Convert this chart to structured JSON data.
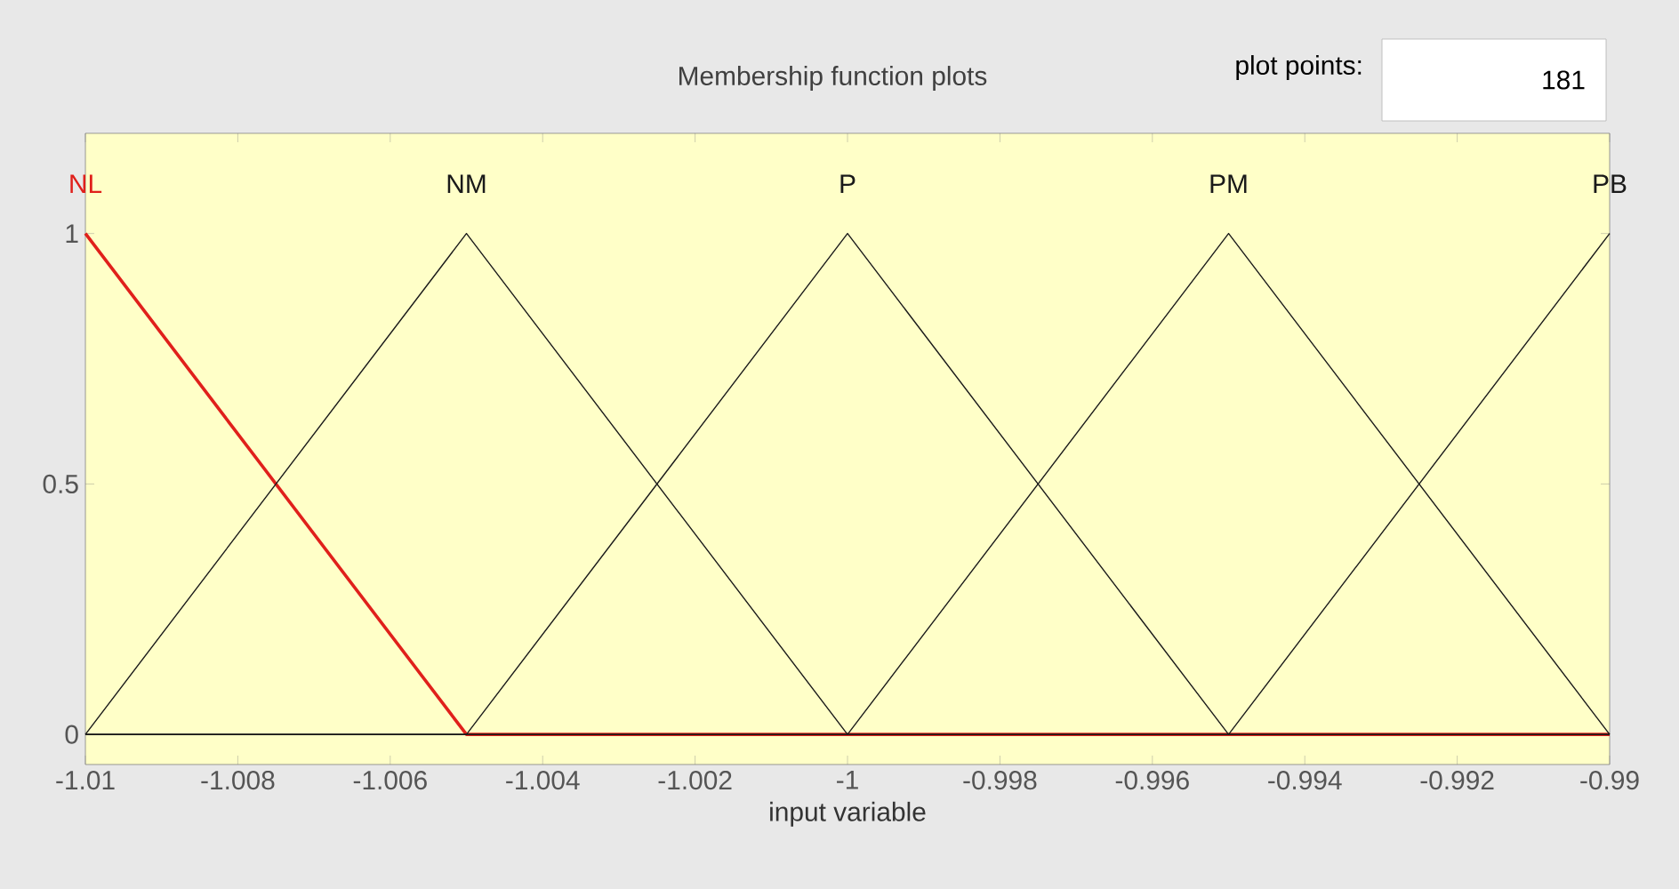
{
  "chart_data": {
    "type": "line",
    "title": "Membership function plots",
    "xlabel": "input variable",
    "annotations": [
      "plot points:",
      "181"
    ],
    "xlim": [
      -1.01,
      -0.99
    ],
    "xticks": [
      -1.01,
      -1.008,
      -1.006,
      -1.004,
      -1.002,
      -1,
      -0.998,
      -0.996,
      -0.994,
      -0.992,
      -0.99
    ],
    "ylim": [
      -0.06,
      1.2
    ],
    "yticks": [
      0,
      0.5,
      1
    ],
    "series": [
      {
        "name": "NL",
        "color": "#e0201b",
        "x": [
          -1.01,
          -1.005,
          -0.99
        ],
        "values": [
          1,
          0,
          0
        ]
      },
      {
        "name": "NM",
        "color": "#1a1a1a",
        "x": [
          -1.01,
          -1.005,
          -1.0,
          -0.99
        ],
        "values": [
          0,
          1,
          0,
          0
        ]
      },
      {
        "name": "P",
        "color": "#1a1a1a",
        "x": [
          -1.01,
          -1.005,
          -1.0,
          -0.995,
          -0.99
        ],
        "values": [
          0,
          0,
          1,
          0,
          0
        ]
      },
      {
        "name": "PM",
        "color": "#1a1a1a",
        "x": [
          -1.01,
          -1.0,
          -0.995,
          -0.99
        ],
        "values": [
          0,
          0,
          1,
          0
        ]
      },
      {
        "name": "PB",
        "color": "#1a1a1a",
        "x": [
          -1.01,
          -0.995,
          -0.99
        ],
        "values": [
          0,
          0,
          1
        ]
      }
    ]
  }
}
